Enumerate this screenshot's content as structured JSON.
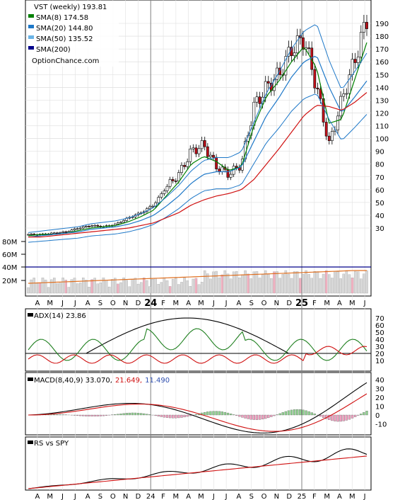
{
  "main": {
    "title": "VST (weekly) 193.81",
    "legend": [
      {
        "label": "SMA(8) 174.58",
        "color": "#008000"
      },
      {
        "label": "SMA(20) 144.80",
        "color": "#1e78c8"
      },
      {
        "label": "SMA(50) 135.52",
        "color": "#6ab4e6"
      },
      {
        "label": "SMA(200)",
        "color": "#00008b"
      }
    ],
    "watermark": "OptionChance.com",
    "price_ticks": [
      "190",
      "180",
      "170",
      "160",
      "150",
      "140",
      "130",
      "120",
      "110",
      "100",
      "90",
      "80",
      "70",
      "60",
      "50",
      "40",
      "30"
    ],
    "volume_ticks": [
      "80M",
      "60M",
      "40M",
      "20M"
    ]
  },
  "adx": {
    "label": "ADX(14) 23.86",
    "ticks": [
      "70",
      "60",
      "50",
      "40",
      "30",
      "20",
      "10"
    ]
  },
  "macd": {
    "label": "MACD(8,40,9) 33.070,",
    "signal_text": "21.649,",
    "hist_text": "11.490",
    "ticks": [
      "40",
      "30",
      "20",
      "10",
      "0",
      "-10"
    ]
  },
  "rs": {
    "label": "RS vs SPY"
  },
  "xaxis": {
    "months": [
      "A",
      "M",
      "J",
      "J",
      "A",
      "S",
      "O",
      "N",
      "D",
      "24",
      "F",
      "M",
      "A",
      "M",
      "J",
      "J",
      "A",
      "S",
      "O",
      "N",
      "D",
      "25",
      "F",
      "M",
      "A",
      "M",
      "J"
    ]
  },
  "colors": {
    "sma8": "#008000",
    "sma20": "#1e78c8",
    "sma50": "#6ab4e6",
    "sma200": "#d01010",
    "sma200_legend": "#00008b",
    "up": "#ffffff",
    "down": "#c0101a",
    "volume": "#d8d8d8",
    "volume_red": "#f0b0c0",
    "macd_signal": "#d01010",
    "macd_hist_text": "#3050b0"
  },
  "chart_data": {
    "type": "line",
    "title": "VST (weekly) 193.81",
    "x": [
      "2023-04",
      "2023-05",
      "2023-06",
      "2023-07",
      "2023-08",
      "2023-09",
      "2023-10",
      "2023-11",
      "2023-12",
      "2024-01",
      "2024-02",
      "2024-03",
      "2024-04",
      "2024-05",
      "2024-06",
      "2024-07",
      "2024-08",
      "2024-09",
      "2024-10",
      "2024-11",
      "2024-12",
      "2025-01",
      "2025-02",
      "2025-03",
      "2025-04",
      "2025-05",
      "2025-06",
      "2025-07"
    ],
    "series": [
      {
        "name": "VST (weekly)",
        "values": [
          25,
          25,
          26,
          27,
          30,
          32,
          31,
          33,
          38,
          42,
          48,
          62,
          72,
          90,
          95,
          78,
          72,
          80,
          125,
          140,
          150,
          170,
          178,
          140,
          95,
          130,
          160,
          193
        ]
      },
      {
        "name": "SMA(8) 174.58",
        "values": [
          24,
          25,
          25,
          26,
          28,
          30,
          31,
          32,
          35,
          39,
          44,
          55,
          66,
          80,
          86,
          82,
          75,
          78,
          110,
          133,
          145,
          160,
          172,
          155,
          112,
          115,
          145,
          175
        ]
      },
      {
        "name": "SMA(20) 144.80",
        "values": [
          23,
          24,
          25,
          26,
          27,
          29,
          30,
          31,
          33,
          36,
          40,
          47,
          55,
          65,
          72,
          74,
          74,
          78,
          98,
          118,
          132,
          148,
          160,
          165,
          140,
          120,
          132,
          145
        ]
      },
      {
        "name": "SMA(50) 135.52",
        "values": [
          23,
          23,
          24,
          25,
          26,
          27,
          28,
          29,
          30,
          32,
          34,
          38,
          42,
          48,
          52,
          55,
          57,
          60,
          68,
          80,
          92,
          105,
          118,
          126,
          125,
          122,
          128,
          136
        ]
      }
    ],
    "ylim": [
      22,
      200
    ]
  }
}
